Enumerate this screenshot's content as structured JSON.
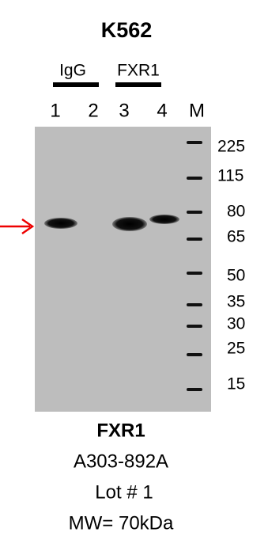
{
  "title": "K562",
  "groups": [
    "IgG",
    "FXR1"
  ],
  "lanes": [
    "1",
    "2",
    "3",
    "4",
    "M"
  ],
  "markers": [
    "225",
    "115",
    "80",
    "65",
    "50",
    "35",
    "30",
    "25",
    "15"
  ],
  "caption": {
    "target": "FXR1",
    "catalog": "A303-892A",
    "lot": "Lot # 1",
    "mw": "MW= 70kDa"
  }
}
